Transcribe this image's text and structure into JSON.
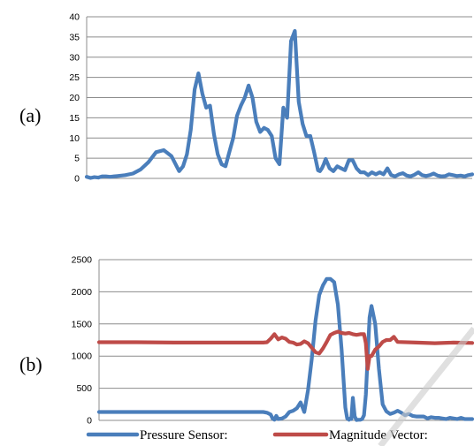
{
  "chart_data": [
    {
      "type": "line",
      "panel_label": "(a)",
      "ylim": [
        0,
        40
      ],
      "yticks": [
        0,
        5,
        10,
        15,
        20,
        25,
        30,
        35,
        40
      ],
      "xlim": [
        0,
        100
      ],
      "grid": true,
      "series": [
        {
          "color": "#4a7ebb",
          "x": [
            0,
            1,
            2,
            3,
            4,
            5,
            6,
            8,
            10,
            12,
            14,
            16,
            18,
            20,
            22,
            24,
            25,
            26,
            27,
            28,
            29,
            30,
            31,
            32,
            33,
            34,
            35,
            36,
            37,
            38,
            39,
            40,
            41,
            42,
            43,
            44,
            45,
            46,
            47,
            48,
            49,
            50,
            51,
            52,
            53,
            54,
            55,
            56,
            57,
            58,
            59,
            60,
            60.5,
            61,
            61.5,
            62,
            63,
            64,
            65,
            66,
            67,
            68,
            69,
            70,
            71,
            72,
            73,
            74,
            75,
            76,
            77,
            78,
            79,
            80,
            81,
            82,
            83,
            84,
            85,
            86,
            87,
            88,
            89,
            90,
            91,
            92,
            93,
            94,
            95,
            96,
            97,
            98,
            99,
            100
          ],
          "values": [
            0.4,
            0.1,
            0.3,
            0.2,
            0.5,
            0.5,
            0.4,
            0.6,
            0.8,
            1.2,
            2.2,
            4.0,
            6.5,
            7.0,
            5.5,
            1.8,
            3.0,
            6.0,
            12.0,
            22.0,
            26.0,
            21.0,
            17.5,
            18.0,
            11.0,
            6.0,
            3.5,
            3.0,
            6.5,
            10.0,
            15.5,
            18.0,
            20.0,
            23.0,
            20.0,
            14.0,
            11.5,
            12.5,
            12.0,
            10.5,
            5.0,
            3.5,
            17.5,
            15.0,
            34.0,
            36.5,
            19.0,
            13.5,
            10.5,
            10.5,
            6.5,
            2.0,
            1.8,
            2.5,
            3.5,
            4.8,
            2.5,
            1.8,
            3.0,
            2.5,
            2.0,
            4.5,
            4.5,
            2.5,
            1.5,
            1.5,
            0.8,
            1.5,
            1.0,
            1.5,
            1.0,
            2.5,
            0.8,
            0.5,
            1.0,
            1.3,
            0.7,
            0.5,
            0.9,
            1.5,
            0.8,
            0.6,
            0.8,
            1.2,
            0.7,
            0.5,
            0.6,
            1.0,
            0.8,
            0.6,
            0.7,
            0.5,
            0.8,
            1.0
          ]
        }
      ]
    },
    {
      "type": "line",
      "panel_label": "(b)",
      "ylim": [
        0,
        2500
      ],
      "yticks": [
        0,
        500,
        1000,
        1500,
        2000,
        2500
      ],
      "xlim": [
        0,
        100
      ],
      "grid": true,
      "legend_position": "bottom",
      "series": [
        {
          "name": "Pressure Sensor:",
          "color": "#4a7ebb",
          "x": [
            0,
            5,
            10,
            20,
            30,
            40,
            44,
            45,
            46,
            46.5,
            47,
            47.5,
            48,
            49,
            50,
            51,
            52,
            53,
            54,
            55,
            56,
            57,
            58,
            59,
            60,
            60.5,
            61,
            62,
            63,
            64,
            65,
            66,
            66.5,
            67,
            67.3,
            67.6,
            68,
            68.5,
            69,
            69.5,
            70,
            70.5,
            71,
            71.5,
            72,
            72.5,
            73,
            74,
            75,
            76,
            77,
            78,
            79,
            80,
            81,
            82,
            83,
            84,
            85,
            86,
            87,
            88,
            89,
            90,
            91,
            92,
            93,
            94,
            95,
            96,
            97,
            98,
            99,
            100
          ],
          "values": [
            130,
            130,
            130,
            130,
            130,
            130,
            130,
            120,
            90,
            30,
            10,
            70,
            20,
            30,
            60,
            130,
            150,
            190,
            280,
            130,
            470,
            950,
            1550,
            1950,
            2100,
            2150,
            2200,
            2200,
            2150,
            1800,
            1100,
            200,
            30,
            10,
            30,
            20,
            350,
            60,
            5,
            10,
            10,
            20,
            80,
            400,
            1000,
            1600,
            1780,
            1500,
            800,
            250,
            140,
            100,
            120,
            150,
            120,
            80,
            100,
            70,
            60,
            60,
            60,
            30,
            50,
            40,
            40,
            30,
            20,
            40,
            30,
            20,
            40,
            20,
            20,
            20
          ]
        },
        {
          "name": "Magnitude Vector:",
          "color": "#be4b48",
          "x": [
            0,
            10,
            20,
            30,
            40,
            44,
            45,
            46,
            47,
            48,
            49,
            50,
            51,
            52,
            53,
            54,
            55,
            56,
            57,
            58,
            59,
            60,
            61,
            62,
            63,
            64,
            65,
            66,
            67,
            68,
            69,
            70,
            71,
            71.5,
            72,
            72.5,
            73,
            73.5,
            74,
            75,
            76,
            77,
            78,
            79,
            80,
            85,
            90,
            95,
            100
          ],
          "values": [
            1215,
            1215,
            1210,
            1210,
            1210,
            1210,
            1215,
            1270,
            1340,
            1260,
            1290,
            1270,
            1220,
            1210,
            1180,
            1190,
            1230,
            1200,
            1130,
            1060,
            1040,
            1120,
            1220,
            1330,
            1360,
            1380,
            1360,
            1350,
            1360,
            1340,
            1330,
            1340,
            1340,
            1200,
            800,
            1000,
            1000,
            1050,
            1100,
            1150,
            1220,
            1250,
            1250,
            1300,
            1220,
            1210,
            1200,
            1210,
            1205
          ]
        }
      ]
    }
  ]
}
